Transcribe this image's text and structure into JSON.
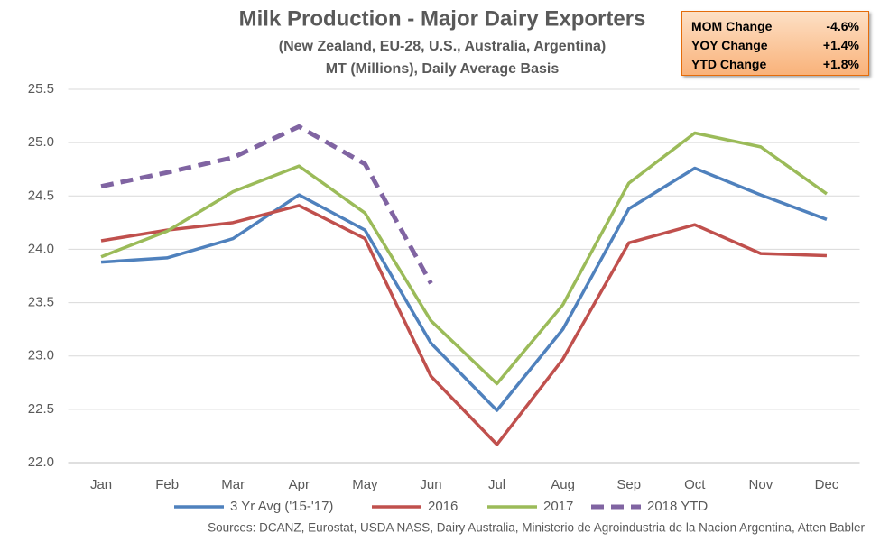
{
  "chart_data": {
    "type": "line",
    "title": "Milk Production - Major Dairy Exporters",
    "subtitle": "(New Zealand, EU-28, U.S., Australia,  Argentina)",
    "subtitle2": "MT (Millions), Daily Average Basis",
    "source": "Sources: DCANZ, Eurostat, USDA NASS, Dairy Australia, Ministerio de Agroindustria de la Nacion Argentina, Atten Babler",
    "annotations": [
      {
        "label": "MOM Change",
        "value": "-4.6%"
      },
      {
        "label": "YOY Change",
        "value": "+1.4%"
      },
      {
        "label": "YTD Change",
        "value": "+1.8%"
      }
    ],
    "categories": [
      "Jan",
      "Feb",
      "Mar",
      "Apr",
      "May",
      "Jun",
      "Jul",
      "Aug",
      "Sep",
      "Oct",
      "Nov",
      "Dec"
    ],
    "series": [
      {
        "name": "3 Yr Avg ('15-'17)",
        "color": "#4f81bd",
        "values": [
          23.88,
          23.92,
          24.1,
          24.51,
          24.18,
          23.12,
          22.49,
          23.25,
          24.38,
          24.76,
          24.51,
          24.28
        ]
      },
      {
        "name": "2016",
        "color": "#c0504d",
        "values": [
          24.08,
          24.18,
          24.25,
          24.41,
          24.1,
          22.81,
          22.17,
          22.97,
          24.06,
          24.23,
          23.96,
          23.94
        ]
      },
      {
        "name": "2017",
        "color": "#9bbb59",
        "values": [
          23.93,
          24.17,
          24.54,
          24.78,
          24.34,
          23.33,
          22.74,
          23.48,
          24.62,
          25.09,
          24.96,
          24.52
        ]
      },
      {
        "name": "2018 YTD",
        "color": "#8064a2",
        "dashed": true,
        "values": [
          24.59,
          24.72,
          24.86,
          25.15,
          24.8,
          23.68,
          null,
          null,
          null,
          null,
          null,
          null
        ]
      }
    ],
    "ylim": [
      22.0,
      25.5
    ],
    "yticks": [
      {
        "value": 22.0,
        "label": "22.0"
      },
      22.5,
      {
        "value": 23.0,
        "label": "23.0"
      },
      23.5,
      {
        "value": 24.0,
        "label": "24.0"
      },
      24.5,
      {
        "value": 25.0,
        "label": "25.0"
      },
      25.5
    ],
    "grid": true,
    "legend": "bottom"
  }
}
